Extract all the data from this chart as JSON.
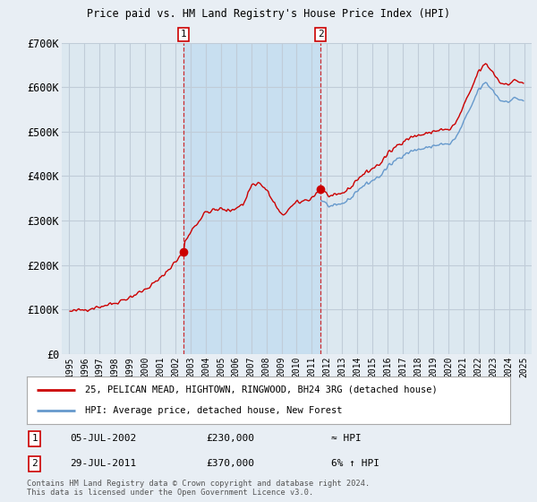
{
  "title": "25, PELICAN MEAD, HIGHTOWN, RINGWOOD, BH24 3RG",
  "subtitle": "Price paid vs. HM Land Registry's House Price Index (HPI)",
  "legend_line1": "25, PELICAN MEAD, HIGHTOWN, RINGWOOD, BH24 3RG (detached house)",
  "legend_line2": "HPI: Average price, detached house, New Forest",
  "footnote": "Contains HM Land Registry data © Crown copyright and database right 2024.\nThis data is licensed under the Open Government Licence v3.0.",
  "transaction1_label": "1",
  "transaction1_date": "05-JUL-2002",
  "transaction1_price": "£230,000",
  "transaction1_hpi": "≈ HPI",
  "transaction2_label": "2",
  "transaction2_date": "29-JUL-2011",
  "transaction2_price": "£370,000",
  "transaction2_hpi": "6% ↑ HPI",
  "ylim": [
    0,
    700000
  ],
  "yticks": [
    0,
    100000,
    200000,
    300000,
    400000,
    500000,
    600000,
    700000
  ],
  "ytick_labels": [
    "£0",
    "£100K",
    "£200K",
    "£300K",
    "£400K",
    "£500K",
    "£600K",
    "£700K"
  ],
  "background_color": "#e8eef4",
  "plot_bg_color": "#dce8f0",
  "shade_color": "#c8dff0",
  "grid_color": "#c0ccd8",
  "red_color": "#cc0000",
  "blue_color": "#6699cc",
  "marker1_x": 2002.54,
  "marker1_y": 230000,
  "marker2_x": 2011.58,
  "marker2_y": 370000,
  "vline1_x": 2002.54,
  "vline2_x": 2011.58,
  "xlim_left": 1994.5,
  "xlim_right": 2025.5
}
